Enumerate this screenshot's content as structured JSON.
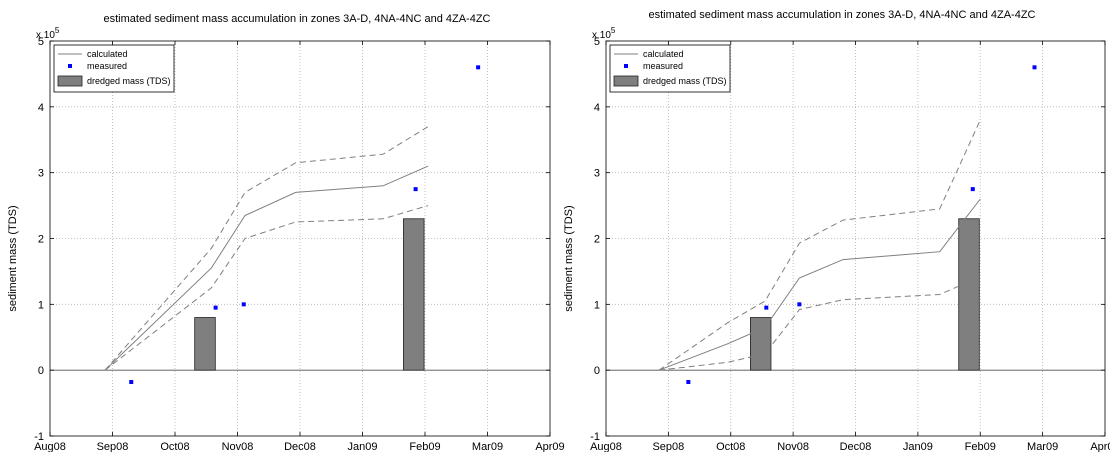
{
  "chart_data": [
    {
      "type": "line",
      "title": "estimated sediment mass accumulation in zones 3A-D, 4NA-4NC and 4ZA-4ZC",
      "xlabel": "",
      "ylabel": "sediment mass (TDS)",
      "y_exponent_label": "x 10",
      "y_exponent_power": "5",
      "x_ticks": [
        "Aug08",
        "Sep08",
        "Oct08",
        "Nov08",
        "Dec08",
        "Jan09",
        "Feb09",
        "Mar09",
        "Apr09"
      ],
      "y_ticks": [
        "-1",
        "0",
        "1",
        "2",
        "3",
        "4",
        "5"
      ],
      "xlim": [
        0,
        8
      ],
      "ylim": [
        -1,
        5
      ],
      "grid": true,
      "legend_position": "top-left",
      "legend": [
        "calculated",
        "measured",
        "dredged mass (TDS)"
      ],
      "series": [
        {
          "name": "calculated",
          "style": "solid",
          "color": "#7f7f7f",
          "x": [
            0.88,
            2.58,
            3.12,
            3.93,
            5.33,
            6.05
          ],
          "y": [
            0,
            1.55,
            2.35,
            2.7,
            2.8,
            3.1
          ]
        },
        {
          "name": "calculated upper bound",
          "style": "dashed",
          "color": "#7f7f7f",
          "x": [
            0.88,
            2.58,
            3.12,
            3.93,
            5.33,
            6.05
          ],
          "y": [
            0,
            1.85,
            2.7,
            3.15,
            3.28,
            3.7
          ]
        },
        {
          "name": "calculated lower bound",
          "style": "dashed",
          "color": "#7f7f7f",
          "x": [
            0.88,
            2.58,
            3.12,
            3.93,
            5.33,
            6.05
          ],
          "y": [
            0,
            1.25,
            2.0,
            2.25,
            2.3,
            2.5
          ]
        },
        {
          "name": "measured",
          "style": "marker",
          "color": "#0000ff",
          "x": [
            1.3,
            2.65,
            3.1,
            5.85,
            6.85
          ],
          "y": [
            -0.18,
            0.95,
            1.0,
            2.75,
            4.6
          ]
        }
      ],
      "bars": [
        {
          "name": "dredged mass (TDS)",
          "color": "#7f7f7f",
          "x_center": 2.48,
          "width": 0.33,
          "value": 0.8
        },
        {
          "name": "dredged mass (TDS)",
          "color": "#7f7f7f",
          "x_center": 5.82,
          "width": 0.33,
          "value": 2.3
        }
      ]
    },
    {
      "type": "line",
      "title": "estimated sediment mass accumulation in zones 3A-D, 4NA-4NC and 4ZA-4ZC",
      "xlabel": "",
      "ylabel": "sediment mass (TDS)",
      "y_exponent_label": "x 10",
      "y_exponent_power": "5",
      "x_ticks": [
        "Aug08",
        "Sep08",
        "Oct08",
        "Nov08",
        "Dec08",
        "Jan09",
        "Feb09",
        "Mar09",
        "Apr09"
      ],
      "y_ticks": [
        "-1",
        "0",
        "1",
        "2",
        "3",
        "4",
        "5"
      ],
      "xlim": [
        0,
        8
      ],
      "ylim": [
        -1,
        5
      ],
      "grid": true,
      "legend_position": "top-left",
      "legend": [
        "calculated",
        "measured",
        "dredged mass (TDS)"
      ],
      "series": [
        {
          "name": "calculated",
          "style": "solid",
          "color": "#7f7f7f",
          "x": [
            0.85,
            1.95,
            2.55,
            3.1,
            3.8,
            5.35,
            6.0
          ],
          "y": [
            0,
            0.4,
            0.65,
            1.4,
            1.68,
            1.8,
            2.6
          ]
        },
        {
          "name": "calculated upper bound",
          "style": "dashed",
          "color": "#7f7f7f",
          "x": [
            0.85,
            1.95,
            2.55,
            3.1,
            3.8,
            5.35,
            6.0
          ],
          "y": [
            0,
            0.72,
            1.05,
            1.93,
            2.28,
            2.45,
            3.8
          ]
        },
        {
          "name": "calculated lower bound",
          "style": "dashed",
          "color": "#7f7f7f",
          "x": [
            0.85,
            1.95,
            2.55,
            3.1,
            3.8,
            5.35,
            6.0
          ],
          "y": [
            0,
            0.12,
            0.25,
            0.92,
            1.07,
            1.15,
            1.42
          ]
        },
        {
          "name": "measured",
          "style": "marker",
          "color": "#0000ff",
          "x": [
            1.32,
            2.57,
            3.1,
            5.88,
            6.87
          ],
          "y": [
            -0.18,
            0.95,
            1.0,
            2.75,
            4.6
          ]
        }
      ],
      "bars": [
        {
          "name": "dredged mass (TDS)",
          "color": "#7f7f7f",
          "x_center": 2.48,
          "width": 0.33,
          "value": 0.8
        },
        {
          "name": "dredged mass (TDS)",
          "color": "#7f7f7f",
          "x_center": 5.82,
          "width": 0.33,
          "value": 2.3
        }
      ]
    }
  ]
}
